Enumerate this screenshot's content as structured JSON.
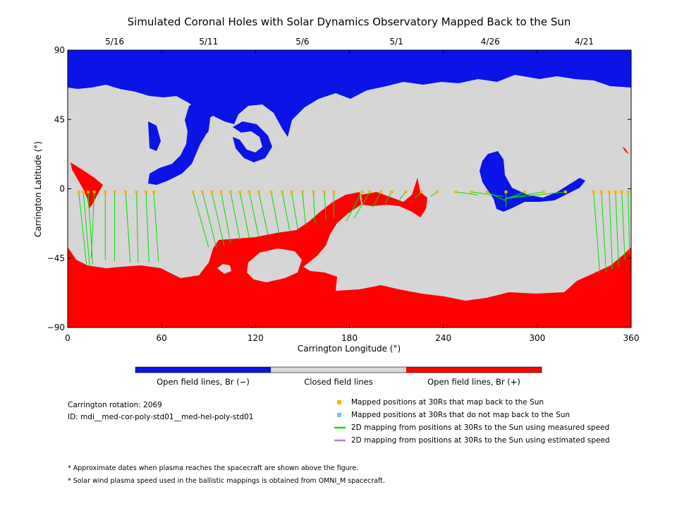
{
  "chart_data": {
    "type": "map",
    "title": "Simulated Coronal Holes with Solar Dynamics Observatory Mapped Back to the Sun",
    "xlabel": "Carrington Longitude (°)",
    "ylabel": "Carrington Latitude (°)",
    "xlim": [
      0,
      360
    ],
    "ylim": [
      -90,
      90
    ],
    "x_ticks": [
      "0",
      "60",
      "120",
      "180",
      "240",
      "300",
      "360"
    ],
    "y_ticks": [
      "90",
      "45",
      "0",
      "−45",
      "−90"
    ],
    "top_dates": [
      {
        "label": "5/16",
        "lon": 30
      },
      {
        "label": "5/11",
        "lon": 90
      },
      {
        "label": "5/6",
        "lon": 150
      },
      {
        "label": "5/1",
        "lon": 210
      },
      {
        "label": "4/26",
        "lon": 270
      },
      {
        "label": "4/21",
        "lon": 330
      }
    ],
    "colorbar": [
      {
        "label": "Open field lines, Br (−)",
        "color": "#0a14e6"
      },
      {
        "label": "Closed field lines",
        "color": "#d6d6d6"
      },
      {
        "label": "Open field lines, Br (+)",
        "color": "#ff0000"
      }
    ],
    "mapped_points": [
      {
        "lon": 7,
        "lat": -2,
        "to_lon": 12,
        "to_lat": -49
      },
      {
        "lon": 10,
        "lat": -2,
        "to_lon": 14,
        "to_lat": -50
      },
      {
        "lon": 13,
        "lat": -2,
        "to_lon": 16,
        "to_lat": -49
      },
      {
        "lon": 17,
        "lat": -2,
        "to_lon": 15,
        "to_lat": -45
      },
      {
        "lon": 24,
        "lat": -2,
        "to_lon": 24,
        "to_lat": -46
      },
      {
        "lon": 30,
        "lat": -2,
        "to_lon": 30,
        "to_lat": -47
      },
      {
        "lon": 37,
        "lat": -2,
        "to_lon": 40,
        "to_lat": -48
      },
      {
        "lon": 44,
        "lat": -2,
        "to_lon": 45,
        "to_lat": -48
      },
      {
        "lon": 50,
        "lat": -2,
        "to_lon": 52,
        "to_lat": -48
      },
      {
        "lon": 55,
        "lat": -2,
        "to_lon": 58,
        "to_lat": -47
      },
      {
        "lon": 80,
        "lat": -2,
        "to_lon": 90,
        "to_lat": -38
      },
      {
        "lon": 86,
        "lat": -2,
        "to_lon": 95,
        "to_lat": -38
      },
      {
        "lon": 92,
        "lat": -2,
        "to_lon": 100,
        "to_lat": -37
      },
      {
        "lon": 98,
        "lat": -2,
        "to_lon": 104,
        "to_lat": -35
      },
      {
        "lon": 104,
        "lat": -2,
        "to_lon": 110,
        "to_lat": -33
      },
      {
        "lon": 110,
        "lat": -2,
        "to_lon": 116,
        "to_lat": -32
      },
      {
        "lon": 116,
        "lat": -2,
        "to_lon": 122,
        "to_lat": -31
      },
      {
        "lon": 122,
        "lat": -2,
        "to_lon": 128,
        "to_lat": -30
      },
      {
        "lon": 130,
        "lat": -2,
        "to_lon": 135,
        "to_lat": -29
      },
      {
        "lon": 137,
        "lat": -2,
        "to_lon": 142,
        "to_lat": -28
      },
      {
        "lon": 143,
        "lat": -2,
        "to_lon": 147,
        "to_lat": -26
      },
      {
        "lon": 150,
        "lat": -2,
        "to_lon": 152,
        "to_lat": -24
      },
      {
        "lon": 157,
        "lat": -2,
        "to_lon": 158,
        "to_lat": -22
      },
      {
        "lon": 164,
        "lat": -2,
        "to_lon": 165,
        "to_lat": -20
      },
      {
        "lon": 170,
        "lat": -2,
        "to_lon": 170,
        "to_lat": -19
      },
      {
        "lon": 188,
        "lat": -2,
        "to_lon": 178,
        "to_lat": -21
      },
      {
        "lon": 193,
        "lat": -2,
        "to_lon": 183,
        "to_lat": -19
      },
      {
        "lon": 200,
        "lat": -2,
        "to_lon": 195,
        "to_lat": -12
      },
      {
        "lon": 207,
        "lat": -2,
        "to_lon": 203,
        "to_lat": -9
      },
      {
        "lon": 216,
        "lat": -2,
        "to_lon": 212,
        "to_lat": -7
      },
      {
        "lon": 226,
        "lat": -2,
        "to_lon": 222,
        "to_lat": -6
      },
      {
        "lon": 236,
        "lat": -2,
        "to_lon": 232,
        "to_lat": -5
      },
      {
        "lon": 248,
        "lat": -2,
        "to_lon": 262,
        "to_lat": -4
      },
      {
        "lon": 258,
        "lat": -2,
        "to_lon": 278,
        "to_lat": -5
      },
      {
        "lon": 268,
        "lat": -2,
        "to_lon": 280,
        "to_lat": -8
      },
      {
        "lon": 280,
        "lat": -2,
        "to_lon": 280,
        "to_lat": -12
      },
      {
        "lon": 292,
        "lat": -2,
        "to_lon": 279,
        "to_lat": -7
      },
      {
        "lon": 304,
        "lat": -2,
        "to_lon": 280,
        "to_lat": -6
      },
      {
        "lon": 318,
        "lat": -2,
        "to_lon": 282,
        "to_lat": -6
      },
      {
        "lon": 336,
        "lat": -2,
        "to_lon": 340,
        "to_lat": -55
      },
      {
        "lon": 341,
        "lat": -2,
        "to_lon": 344,
        "to_lat": -54
      },
      {
        "lon": 346,
        "lat": -2,
        "to_lon": 348,
        "to_lat": -52
      },
      {
        "lon": 350,
        "lat": -2,
        "to_lon": 352,
        "to_lat": -50
      },
      {
        "lon": 354,
        "lat": -2,
        "to_lon": 356,
        "to_lat": -46
      },
      {
        "lon": 358,
        "lat": -2,
        "to_lon": 359,
        "to_lat": -42
      }
    ]
  },
  "info": {
    "rotation": "Carrington rotation: 2069",
    "id": "ID: mdi__med-cor-poly-std01__med-hel-poly-std01"
  },
  "legend": [
    {
      "kind": "square",
      "color": "#ffb000",
      "label": "Mapped positions at 30Rs that map back to the Sun"
    },
    {
      "kind": "square",
      "color": "#7ec0f0",
      "label": "Mapped positions at 30Rs that do not map back to the Sun"
    },
    {
      "kind": "line",
      "color": "#00e000",
      "label": "2D mapping from positions at 30Rs to the Sun using measured speed"
    },
    {
      "kind": "line",
      "color": "#b07ee0",
      "label": "2D mapping from positions at 30Rs to the Sun using estimated speed"
    }
  ],
  "notes": [
    "* Approximate dates when plasma reaches the spacecraft are shown above the figure.",
    "* Solar wind plasma speed used in the ballistic mappings is obtained from OMNI_M spacecraft."
  ]
}
